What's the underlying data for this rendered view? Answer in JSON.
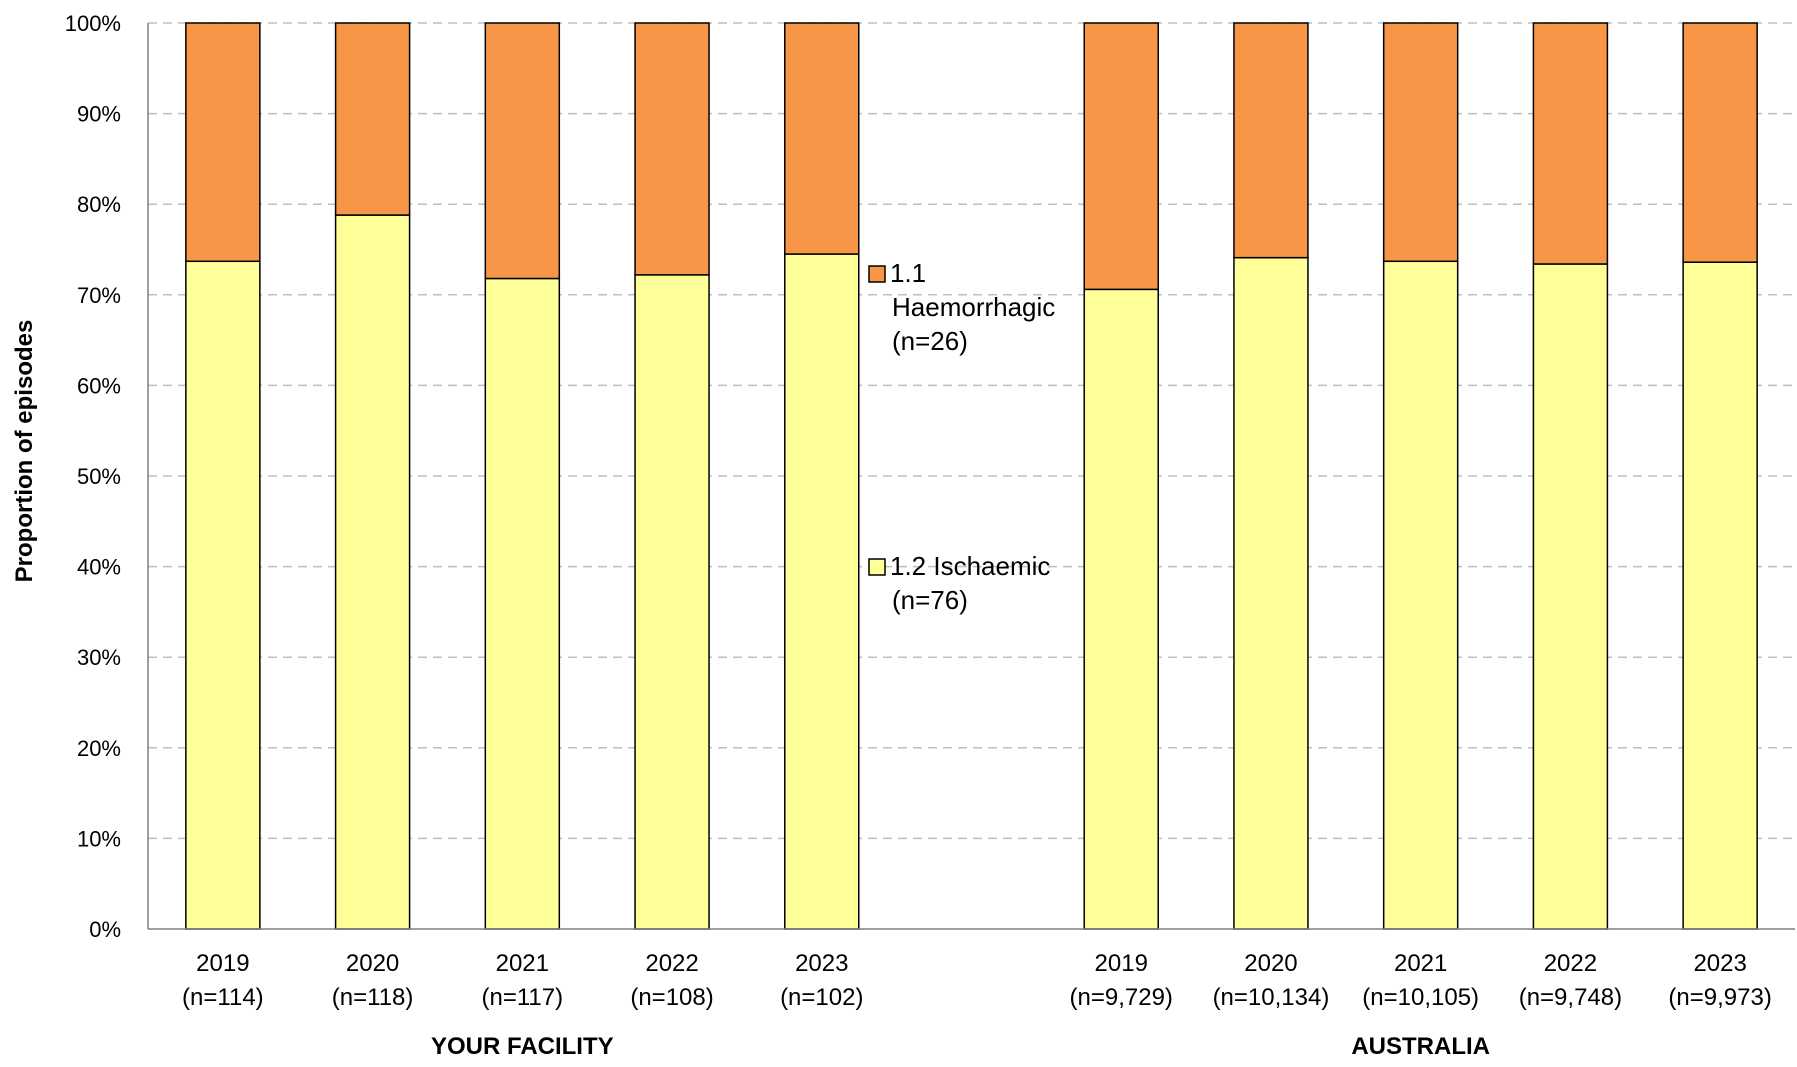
{
  "chart_data": {
    "type": "bar",
    "stacked": true,
    "ylabel": "Proportion of episodes",
    "ylim": [
      0,
      100
    ],
    "y_ticks": [
      "0%",
      "10%",
      "20%",
      "30%",
      "40%",
      "50%",
      "60%",
      "70%",
      "80%",
      "90%",
      "100%"
    ],
    "grid": "horizontal dashed",
    "groups": [
      {
        "label": "YOUR FACILITY",
        "categories": [
          {
            "year": "2019",
            "n": "(n=114)"
          },
          {
            "year": "2020",
            "n": "(n=118)"
          },
          {
            "year": "2021",
            "n": "(n=117)"
          },
          {
            "year": "2022",
            "n": "(n=108)"
          },
          {
            "year": "2023",
            "n": "(n=102)"
          }
        ]
      },
      {
        "label": "AUSTRALIA",
        "categories": [
          {
            "year": "2019",
            "n": "(n=9,729)"
          },
          {
            "year": "2020",
            "n": "(n=10,134)"
          },
          {
            "year": "2021",
            "n": "(n=10,105)"
          },
          {
            "year": "2022",
            "n": "(n=9,748)"
          },
          {
            "year": "2023",
            "n": "(n=9,973)"
          }
        ]
      }
    ],
    "series": [
      {
        "name": "1.2 Ischaemic",
        "legend_lines": [
          "1.2 Ischaemic",
          "(n=76)"
        ],
        "color": "#FFFF99",
        "values": [
          73.7,
          78.8,
          71.8,
          72.2,
          74.5,
          70.6,
          74.1,
          73.7,
          73.4,
          73.6
        ]
      },
      {
        "name": "1.1 Haemorrhagic",
        "legend_lines": [
          "1.1",
          "Haemorrhagic",
          "(n=26)"
        ],
        "color": "#F79646",
        "values": [
          26.3,
          21.2,
          28.2,
          27.8,
          25.5,
          29.4,
          25.9,
          26.3,
          26.6,
          26.4
        ]
      }
    ]
  }
}
